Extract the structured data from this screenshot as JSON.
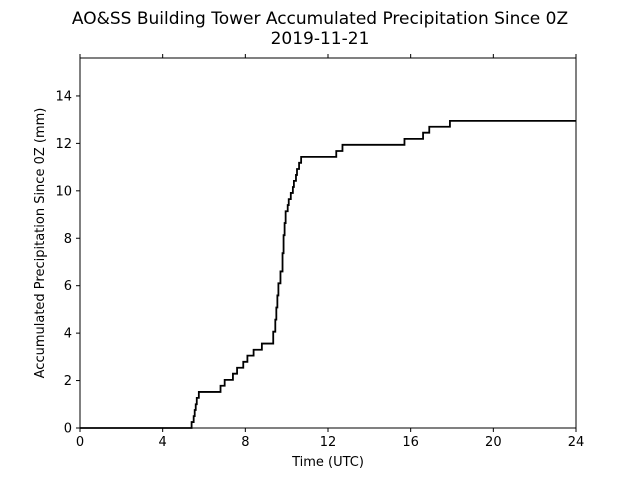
{
  "chart_data": {
    "type": "line",
    "title": "AO&SS Building Tower Accumulated Precipitation Since 0Z",
    "subtitle": "2019-11-21",
    "xlabel": "Time (UTC)",
    "ylabel": "Accumulated Precipitation Since 0Z (mm)",
    "xlim": [
      0,
      24
    ],
    "ylim": [
      0,
      15.6
    ],
    "xticks": [
      0,
      4,
      8,
      12,
      16,
      20,
      24
    ],
    "yticks": [
      0,
      2,
      4,
      6,
      8,
      10,
      12,
      14
    ],
    "grid": false,
    "line_color": "#000000",
    "series": [
      {
        "name": "",
        "step": true,
        "points": [
          [
            0,
            0
          ],
          [
            5.4,
            0
          ],
          [
            5.4,
            0.25
          ],
          [
            5.5,
            0.5
          ],
          [
            5.55,
            0.76
          ],
          [
            5.6,
            1.0
          ],
          [
            5.65,
            1.27
          ],
          [
            5.75,
            1.52
          ],
          [
            6.8,
            1.52
          ],
          [
            6.8,
            1.78
          ],
          [
            7.0,
            2.03
          ],
          [
            7.4,
            2.29
          ],
          [
            7.6,
            2.54
          ],
          [
            7.9,
            2.79
          ],
          [
            8.1,
            3.05
          ],
          [
            8.4,
            3.3
          ],
          [
            8.8,
            3.56
          ],
          [
            9.3,
            3.56
          ],
          [
            9.35,
            4.06
          ],
          [
            9.45,
            4.57
          ],
          [
            9.5,
            5.08
          ],
          [
            9.55,
            5.59
          ],
          [
            9.6,
            6.1
          ],
          [
            9.7,
            6.6
          ],
          [
            9.8,
            7.37
          ],
          [
            9.85,
            8.13
          ],
          [
            9.9,
            8.64
          ],
          [
            9.95,
            9.14
          ],
          [
            10.05,
            9.4
          ],
          [
            10.1,
            9.65
          ],
          [
            10.2,
            9.91
          ],
          [
            10.3,
            10.16
          ],
          [
            10.35,
            10.42
          ],
          [
            10.45,
            10.67
          ],
          [
            10.5,
            10.92
          ],
          [
            10.6,
            11.18
          ],
          [
            10.7,
            11.43
          ],
          [
            12.4,
            11.43
          ],
          [
            12.4,
            11.68
          ],
          [
            12.7,
            11.94
          ],
          [
            15.7,
            11.94
          ],
          [
            15.7,
            12.19
          ],
          [
            16.6,
            12.19
          ],
          [
            16.6,
            12.45
          ],
          [
            16.9,
            12.7
          ],
          [
            17.9,
            12.7
          ],
          [
            17.9,
            12.95
          ],
          [
            24,
            12.95
          ]
        ]
      }
    ]
  }
}
